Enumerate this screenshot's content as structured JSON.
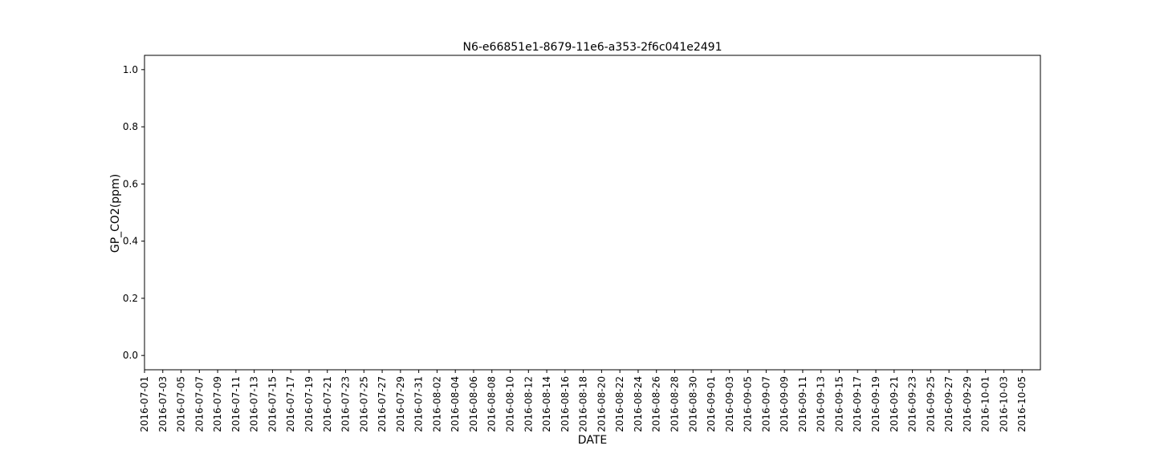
{
  "chart_data": {
    "type": "line",
    "title": "N6-e66851e1-8679-11e6-a353-2f6c041e2491",
    "xlabel": "DATE",
    "ylabel": "GP_CO2(ppm)",
    "ylim": [
      -0.05,
      1.05
    ],
    "y_ticks": [
      0.0,
      0.2,
      0.4,
      0.6,
      0.8,
      1.0
    ],
    "y_tick_labels": [
      "0.0",
      "0.2",
      "0.4",
      "0.6",
      "0.8",
      "1.0"
    ],
    "x_range": [
      "2016-07-01",
      "2016-10-06"
    ],
    "x_tick_labels": [
      "2016-07-01",
      "2016-07-03",
      "2016-07-05",
      "2016-07-07",
      "2016-07-09",
      "2016-07-11",
      "2016-07-13",
      "2016-07-15",
      "2016-07-17",
      "2016-07-19",
      "2016-07-21",
      "2016-07-23",
      "2016-07-25",
      "2016-07-27",
      "2016-07-29",
      "2016-07-31",
      "2016-08-02",
      "2016-08-04",
      "2016-08-06",
      "2016-08-08",
      "2016-08-10",
      "2016-08-12",
      "2016-08-14",
      "2016-08-16",
      "2016-08-18",
      "2016-08-20",
      "2016-08-22",
      "2016-08-24",
      "2016-08-26",
      "2016-08-28",
      "2016-08-30",
      "2016-09-01",
      "2016-09-03",
      "2016-09-05",
      "2016-09-07",
      "2016-09-09",
      "2016-09-11",
      "2016-09-13",
      "2016-09-15",
      "2016-09-17",
      "2016-09-19",
      "2016-09-21",
      "2016-09-23",
      "2016-09-25",
      "2016-09-27",
      "2016-09-29",
      "2016-10-01",
      "2016-10-03",
      "2016-10-05"
    ],
    "series": [],
    "grid": false
  }
}
